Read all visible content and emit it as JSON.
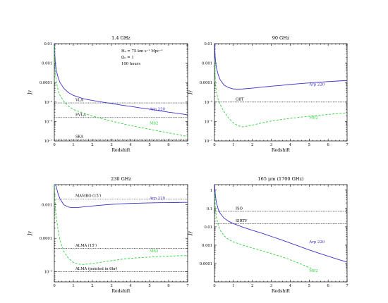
{
  "chart_data": [
    {
      "type": "line",
      "title": "1.4 GHz",
      "xlabel": "Redshift",
      "ylabel": "Jy",
      "xlim": [
        0,
        7
      ],
      "ylim": [
        1e-07,
        0.01
      ],
      "yscale": "log",
      "xticks": [
        "0",
        "1",
        "2",
        "3",
        "4",
        "5",
        "6",
        "7"
      ],
      "yticks": [
        {
          "v": 0.01,
          "label": "0.01"
        },
        {
          "v": 0.001,
          "label": "0.001"
        },
        {
          "v": 0.0001,
          "label": "0.0001"
        },
        {
          "v": 1e-05,
          "label": "10⁻⁵"
        },
        {
          "v": 1e-06,
          "label": "10⁻⁶"
        },
        {
          "v": 1e-07,
          "label": "10⁻⁷"
        }
      ],
      "annotation_lines": [
        "H₀ = 75 km s⁻¹ Mpc⁻¹",
        "Ω₀ = 1",
        "100 hours"
      ],
      "thresholds": [
        {
          "label": "VLA",
          "value": 9e-06
        },
        {
          "label": "EVLA",
          "value": 1.6e-06
        },
        {
          "label": "SKA",
          "value": 1.2e-07
        }
      ],
      "series": [
        {
          "name": "Arp 220",
          "color": "#3b30c8",
          "style": "solid",
          "label_pos": {
            "x": 5.0,
            "y": 3.8e-06
          },
          "x": [
            0.01,
            0.03,
            0.05,
            0.1,
            0.2,
            0.3,
            0.5,
            0.75,
            1,
            1.5,
            2,
            2.5,
            3,
            3.5,
            4,
            4.5,
            5,
            5.5,
            6,
            6.5,
            7
          ],
          "y": [
            0.01,
            0.0025,
            0.0012,
            0.00045,
            0.00018,
            0.0001,
            5e-05,
            3e-05,
            2.2e-05,
            1.5e-05,
            1.2e-05,
            1e-05,
            8.5e-06,
            7e-06,
            6e-06,
            5e-06,
            4.3e-06,
            3.6e-06,
            3e-06,
            2.6e-06,
            2.2e-06
          ]
        },
        {
          "name": "M82",
          "color": "#2fd23a",
          "style": "dashed",
          "label_pos": {
            "x": 5.0,
            "y": 7e-07
          },
          "x": [
            0.01,
            0.02,
            0.05,
            0.1,
            0.2,
            0.3,
            0.5,
            0.75,
            1,
            1.5,
            2,
            2.5,
            3,
            3.5,
            4,
            4.5,
            5,
            5.5,
            6,
            6.5,
            7
          ],
          "y": [
            0.008,
            0.002,
            0.0004,
            0.00012,
            4e-05,
            2.2e-05,
            1.1e-05,
            6e-06,
            4.2e-06,
            2.7e-06,
            1.9e-06,
            1.4e-06,
            1.05e-06,
            8e-07,
            6.2e-07,
            5e-07,
            4e-07,
            3.2e-07,
            2.6e-07,
            2.1e-07,
            1.7e-07
          ]
        }
      ]
    },
    {
      "type": "line",
      "title": "90 GHz",
      "xlabel": "Redshift",
      "ylabel": "Jy",
      "xlim": [
        0,
        7
      ],
      "ylim": [
        1e-07,
        0.01
      ],
      "yscale": "log",
      "xticks": [
        "0",
        "1",
        "2",
        "3",
        "4",
        "5",
        "6",
        "7"
      ],
      "yticks": [
        {
          "v": 0.01,
          "label": "0.01"
        },
        {
          "v": 0.001,
          "label": "0.001"
        },
        {
          "v": 0.0001,
          "label": "0.0001"
        },
        {
          "v": 1e-05,
          "label": "10⁻⁵"
        },
        {
          "v": 1e-06,
          "label": "10⁻⁶"
        },
        {
          "v": 1e-07,
          "label": "10⁻⁷"
        }
      ],
      "annotation_lines": [],
      "thresholds": [
        {
          "label": "GBT",
          "value": 1e-05
        }
      ],
      "series": [
        {
          "name": "Arp 220",
          "color": "#3b30c8",
          "style": "solid",
          "label_pos": {
            "x": 5.0,
            "y": 7e-05
          },
          "x": [
            0.01,
            0.02,
            0.05,
            0.1,
            0.2,
            0.3,
            0.5,
            0.75,
            1,
            1.25,
            1.5,
            2,
            2.5,
            3,
            3.5,
            4,
            4.5,
            5,
            5.5,
            6,
            6.5,
            7
          ],
          "y": [
            0.01,
            0.004,
            0.0015,
            0.0006,
            0.00025,
            0.00014,
            7.5e-05,
            5.5e-05,
            4.7e-05,
            4.6e-05,
            4.7e-05,
            5.2e-05,
            5.8e-05,
            6.5e-05,
            7.2e-05,
            8e-05,
            8.8e-05,
            9.6e-05,
            0.000104,
            0.000112,
            0.00012,
            0.000128
          ]
        },
        {
          "name": "M82",
          "color": "#2fd23a",
          "style": "dashed",
          "label_pos": {
            "x": 5.0,
            "y": 1.4e-06
          },
          "x": [
            0.01,
            0.02,
            0.05,
            0.1,
            0.2,
            0.3,
            0.5,
            0.75,
            1,
            1.25,
            1.5,
            2,
            2.5,
            3,
            3.5,
            4,
            4.5,
            5,
            5.5,
            6,
            6.5,
            7
          ],
          "y": [
            0.0015,
            0.0005,
            0.0001,
            3.5e-05,
            1.3e-05,
            7.5e-06,
            3.2e-06,
            1.5e-06,
            8.5e-07,
            6e-07,
            5.3e-07,
            6.5e-07,
            8.5e-07,
            1.05e-06,
            1.25e-06,
            1.45e-06,
            1.65e-06,
            1.85e-06,
            2.05e-06,
            2.3e-06,
            2.55e-06,
            2.8e-06
          ]
        }
      ]
    },
    {
      "type": "line",
      "title": "230 GHz",
      "xlabel": "Redshift",
      "ylabel": "Jy",
      "xlim": [
        0,
        7
      ],
      "ylim": [
        5e-06,
        0.004
      ],
      "yscale": "log",
      "xticks": [
        "0",
        "1",
        "2",
        "3",
        "4",
        "5",
        "6",
        "7"
      ],
      "yticks": [
        {
          "v": 0.001,
          "label": "0.001"
        },
        {
          "v": 0.0001,
          "label": "0.0001"
        },
        {
          "v": 1e-05,
          "label": "10⁻⁵"
        }
      ],
      "annotation_lines": [],
      "thresholds": [
        {
          "label": "MAMBO (15')",
          "value": 0.0015
        },
        {
          "label": "ALMA (15')",
          "value": 5e-05
        },
        {
          "label": "ALMA (pointed in 6hr)",
          "value": 1e-05
        }
      ],
      "series": [
        {
          "name": "Arp 220",
          "color": "#3b30c8",
          "style": "solid",
          "label_pos": {
            "x": 5.0,
            "y": 0.00145
          },
          "x": [
            0.01,
            0.02,
            0.05,
            0.1,
            0.2,
            0.3,
            0.5,
            0.75,
            1,
            1.25,
            1.5,
            2,
            2.5,
            3,
            3.5,
            4,
            4.5,
            5,
            5.5,
            6,
            6.5,
            7
          ],
          "y": [
            0.004,
            0.004,
            0.004,
            0.0035,
            0.0021,
            0.0015,
            0.001,
            0.00085,
            0.00082,
            0.00083,
            0.00086,
            0.00092,
            0.00098,
            0.00103,
            0.00107,
            0.0011,
            0.00112,
            0.00114,
            0.00115,
            0.00116,
            0.00117,
            0.00118
          ]
        },
        {
          "name": "M82",
          "color": "#2fd23a",
          "style": "dashed",
          "label_pos": {
            "x": 5.0,
            "y": 3.8e-05
          },
          "x": [
            0.01,
            0.02,
            0.05,
            0.1,
            0.2,
            0.3,
            0.5,
            0.75,
            1,
            1.25,
            1.5,
            2,
            2.5,
            3,
            3.5,
            4,
            4.5,
            5,
            5.5,
            6,
            6.5,
            7
          ],
          "y": [
            0.004,
            0.0025,
            0.001,
            0.00045,
            0.00017,
            8.5e-05,
            4e-05,
            2.5e-05,
            1.9e-05,
            1.7e-05,
            1.65e-05,
            1.75e-05,
            1.95e-05,
            2.15e-05,
            2.35e-05,
            2.5e-05,
            2.65e-05,
            2.75e-05,
            2.85e-05,
            2.93e-05,
            3e-05,
            3.05e-05
          ]
        }
      ]
    },
    {
      "type": "line",
      "title": "165 μm   (1700 GHz)",
      "xlabel": "Redshift",
      "ylabel": "Jy",
      "xlim": [
        0,
        7
      ],
      "ylim": [
        1e-05,
        2
      ],
      "yscale": "log",
      "xticks": [
        "0",
        "1",
        "2",
        "3",
        "4",
        "5",
        "6",
        "7"
      ],
      "yticks": [
        {
          "v": 1,
          "label": "1"
        },
        {
          "v": 0.1,
          "label": "0.1"
        },
        {
          "v": 0.01,
          "label": "0.01"
        },
        {
          "v": 0.001,
          "label": "0.001"
        },
        {
          "v": 0.0001,
          "label": "0.0001"
        }
      ],
      "annotation_lines": [],
      "thresholds": [
        {
          "label": "ISO",
          "value": 0.07
        },
        {
          "label": "SIRTF",
          "value": 0.015
        }
      ],
      "series": [
        {
          "name": "Arp 220",
          "color": "#3b30c8",
          "style": "solid",
          "label_pos": {
            "x": 5.0,
            "y": 0.0013
          },
          "x": [
            0.01,
            0.02,
            0.05,
            0.1,
            0.2,
            0.3,
            0.5,
            0.75,
            1,
            1.5,
            2,
            2.5,
            3,
            3.5,
            4,
            4.5,
            5,
            5.5,
            6,
            6.5,
            7
          ],
          "y": [
            2,
            1.2,
            0.5,
            0.22,
            0.09,
            0.055,
            0.03,
            0.02,
            0.015,
            0.0095,
            0.0065,
            0.0045,
            0.003,
            0.002,
            0.0013,
            0.00085,
            0.00055,
            0.00037,
            0.00025,
            0.00017,
            0.00012
          ]
        },
        {
          "name": "M82",
          "color": "#2fd23a",
          "style": "dashed",
          "label_pos": {
            "x": 5.0,
            "y": 3.5e-05
          },
          "x": [
            0.01,
            0.02,
            0.05,
            0.1,
            0.2,
            0.3,
            0.5,
            0.75,
            1,
            1.5,
            2,
            2.5,
            3,
            3.5,
            4,
            4.5,
            5,
            5.2
          ],
          "y": [
            0.8,
            0.35,
            0.1,
            0.035,
            0.012,
            0.0065,
            0.0033,
            0.002,
            0.0015,
            0.001,
            0.0007,
            0.0005,
            0.00035,
            0.00024,
            0.00016,
            0.0001,
            6e-05,
            5e-05
          ]
        }
      ]
    }
  ]
}
